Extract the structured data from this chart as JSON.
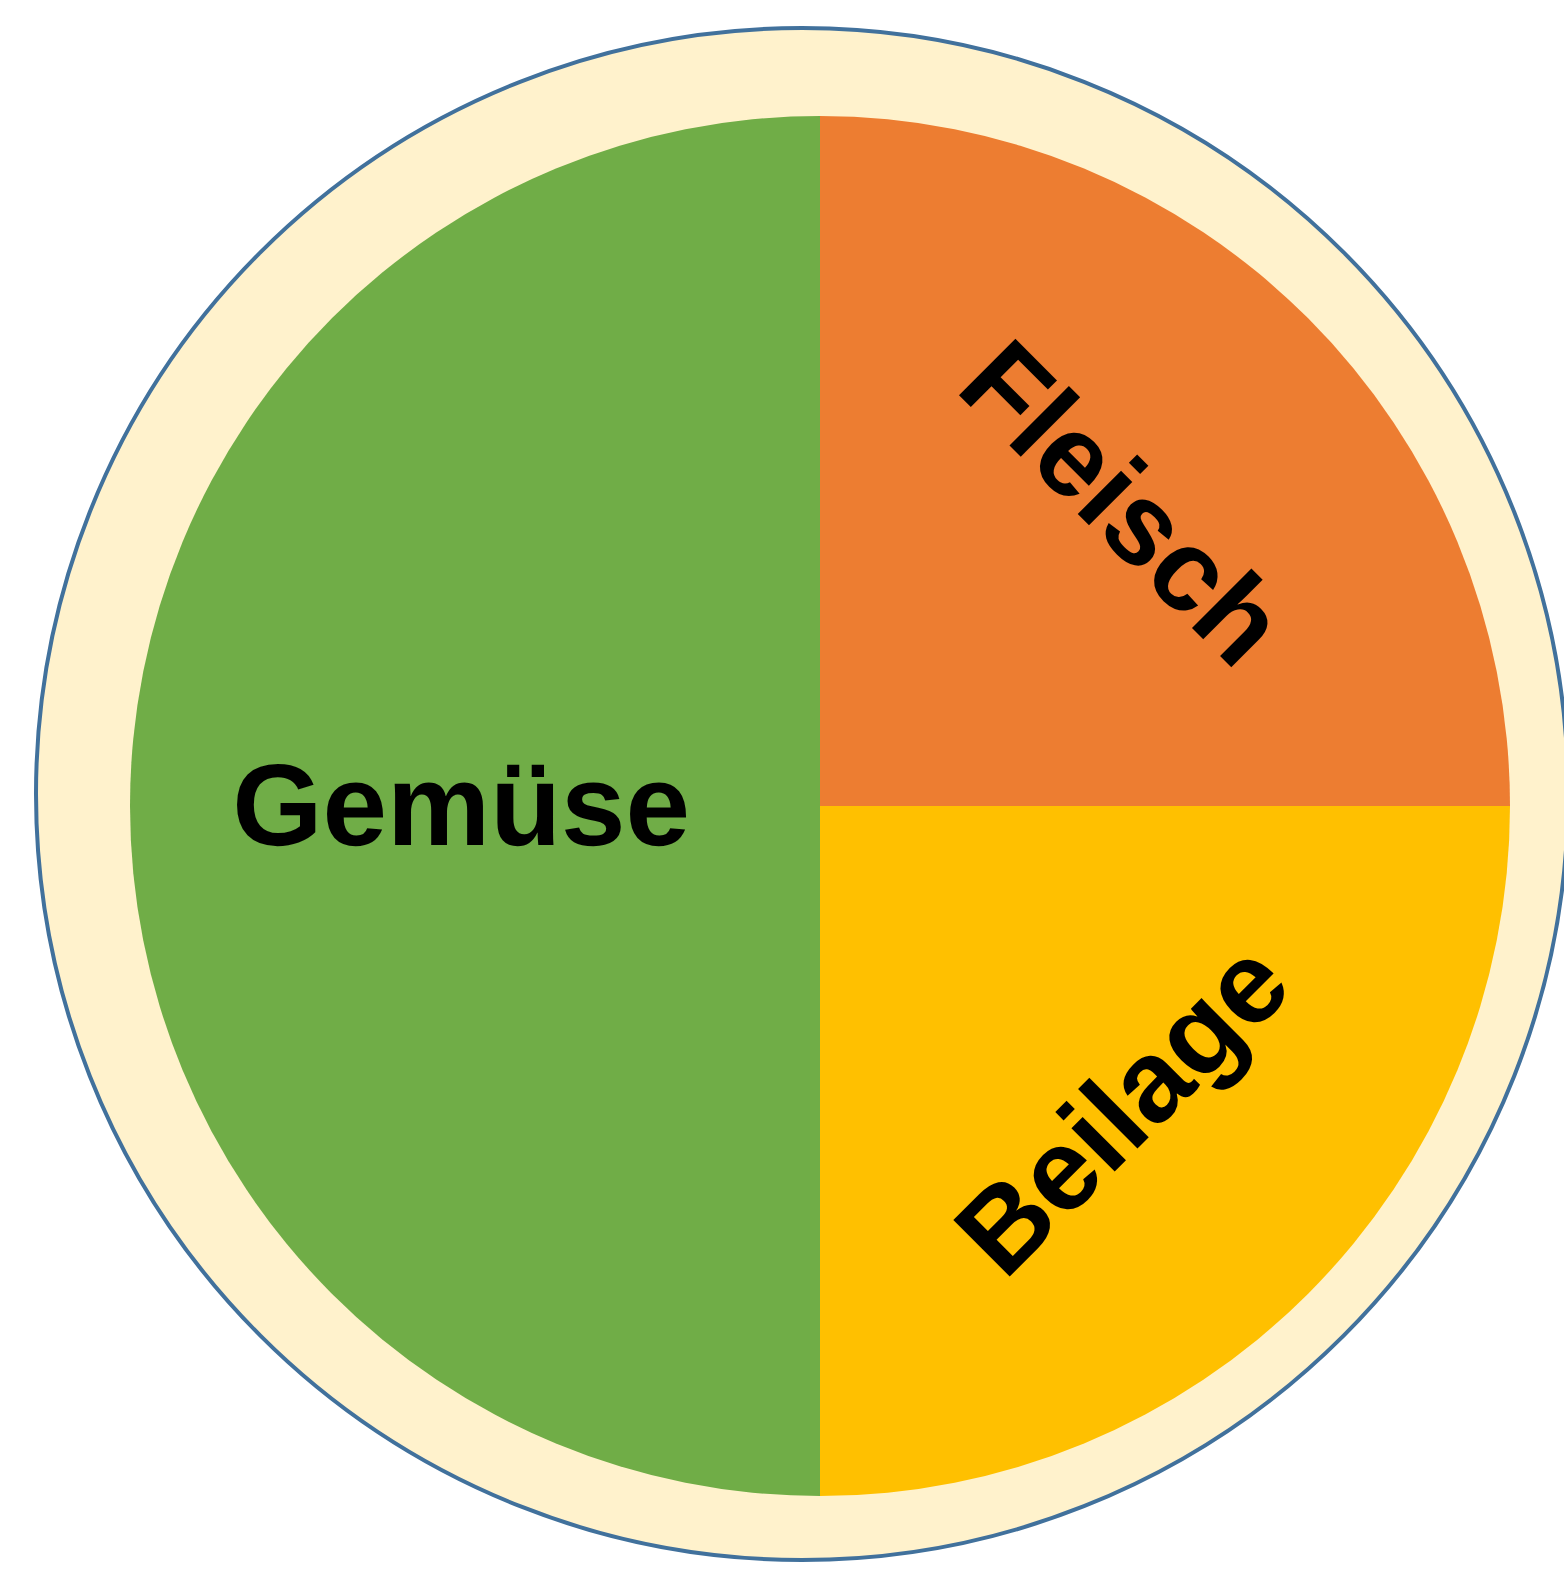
{
  "chart_data": {
    "type": "pie",
    "categories": [
      "Fleisch",
      "Beilage",
      "Gemüse"
    ],
    "values": [
      25,
      25,
      50
    ],
    "colors": [
      "#ed7d31",
      "#ffc000",
      "#70ad47"
    ]
  }
}
